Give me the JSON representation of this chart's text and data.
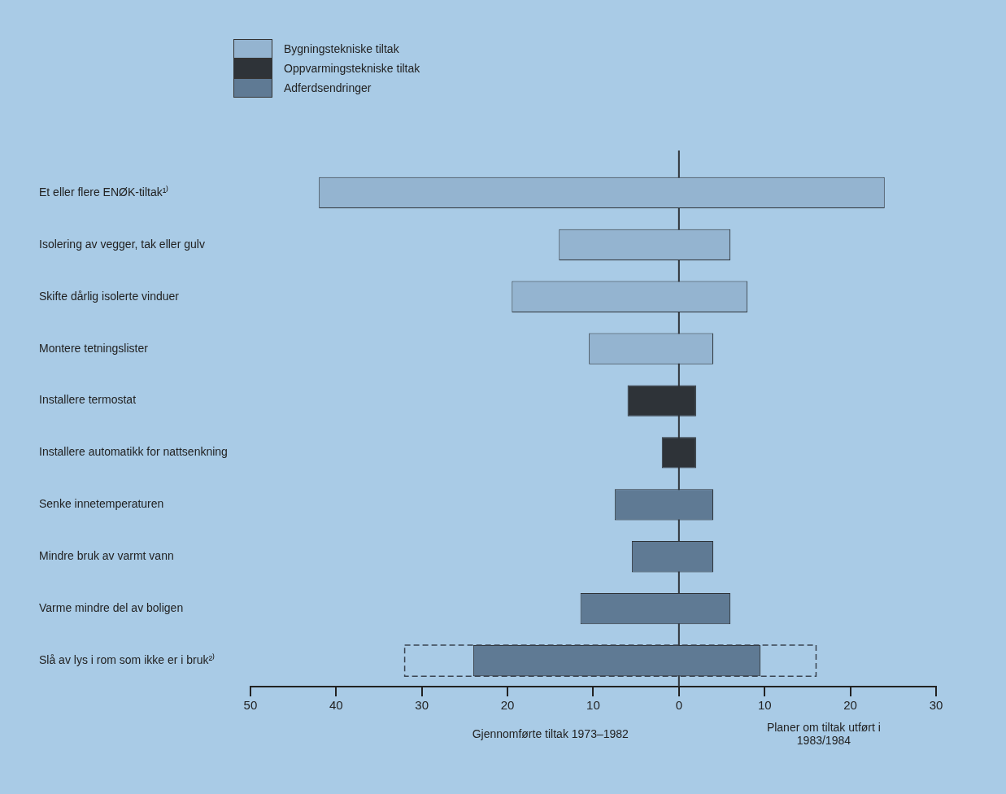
{
  "chart_data": {
    "type": "bar",
    "orientation": "horizontal",
    "categories": [
      "Et eller flere ENØK-tiltak¹⁾",
      "Isolering av vegger, tak eller gulv",
      "Skifte dårlig isolerte vinduer",
      "Montere tetningslister",
      "Installere termostat",
      "Installere automatikk for nattsenkning",
      "Senke innetemperaturen",
      "Mindre bruk av varmt vann",
      "Varme mindre del av boligen",
      "Slå av lys i rom som ikke er i bruk²⁾"
    ],
    "series": [
      {
        "name": "Bygningstekniske tiltak",
        "color": "#94b4d0",
        "base": [
          -42,
          -14,
          -19.5,
          -10.5,
          null,
          null,
          null,
          null,
          null,
          null
        ],
        "values": [
          66,
          20,
          27.5,
          14.5,
          null,
          null,
          null,
          null,
          null,
          null
        ]
      },
      {
        "name": "Oppvarmingstekniske tiltak",
        "color": "#2e3338",
        "base": [
          null,
          null,
          null,
          null,
          -6,
          -2,
          null,
          null,
          null,
          null
        ],
        "values": [
          null,
          null,
          null,
          null,
          8,
          4,
          null,
          null,
          null,
          null
        ]
      },
      {
        "name": "Adferdsendringer",
        "color": "#5f7a94",
        "base": [
          null,
          null,
          null,
          null,
          null,
          null,
          -7.5,
          -5.5,
          -11.5,
          -24
        ],
        "values": [
          null,
          null,
          null,
          null,
          null,
          null,
          11.5,
          9.5,
          17.5,
          33.5
        ]
      },
      {
        "color": "#3a4450",
        "line_style": "dashed",
        "base": [
          null,
          null,
          null,
          null,
          null,
          null,
          null,
          null,
          null,
          -32
        ],
        "values": [
          null,
          null,
          null,
          null,
          null,
          null,
          null,
          null,
          null,
          48
        ]
      }
    ],
    "xlim": [
      -50,
      30
    ],
    "xticks": [
      {
        "value": -50,
        "label": "50"
      },
      {
        "value": -40,
        "label": "40"
      },
      {
        "value": -30,
        "label": "30"
      },
      {
        "value": -20,
        "label": "20"
      },
      {
        "value": -10,
        "label": "10"
      },
      0,
      10,
      20,
      30
    ],
    "ref_lines": [
      {
        "axis": "x",
        "value": 0,
        "color": "#2e3338"
      }
    ],
    "annotations": [
      "Gjennomførte tiltak 1973–1982",
      "Planer om tiltak utført i 1983/1984"
    ],
    "legend": "top left",
    "grid": false
  }
}
